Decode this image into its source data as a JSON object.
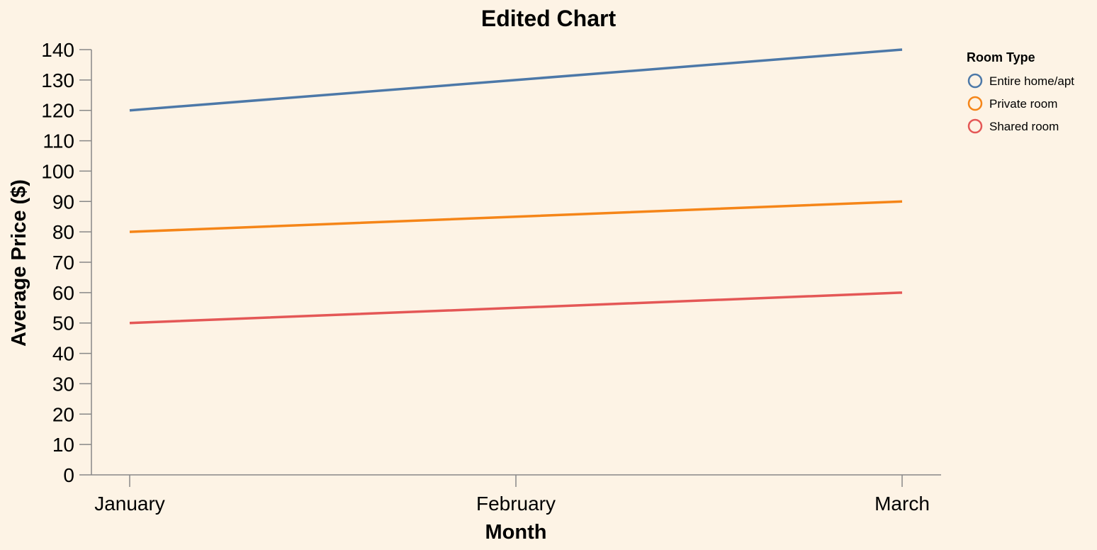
{
  "chart_data": {
    "type": "line",
    "title": "Edited Chart",
    "xlabel": "Month",
    "ylabel": "Average Price ($)",
    "categories": [
      "January",
      "February",
      "March"
    ],
    "ylim": [
      0,
      140
    ],
    "yticks": [
      0,
      10,
      20,
      30,
      40,
      50,
      60,
      70,
      80,
      90,
      100,
      110,
      120,
      130,
      140
    ],
    "grid": false,
    "legend": {
      "title": "Room Type",
      "placement": "top-right"
    },
    "series": [
      {
        "name": "Entire home/apt",
        "color": "#4c78a8",
        "values": [
          120,
          130,
          140
        ]
      },
      {
        "name": "Private room",
        "color": "#f58518",
        "values": [
          80,
          85,
          90
        ]
      },
      {
        "name": "Shared room",
        "color": "#e45756",
        "values": [
          50,
          55,
          60
        ]
      }
    ]
  }
}
